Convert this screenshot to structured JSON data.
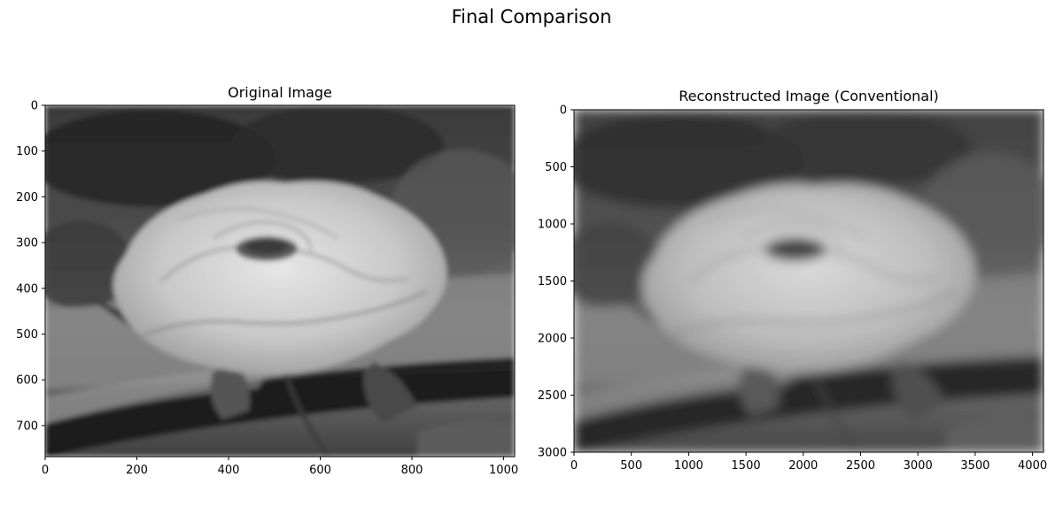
{
  "figure": {
    "title": "Final Comparison"
  },
  "chart_data": [
    {
      "type": "heatmap",
      "title": "Original Image",
      "colormap": "gray",
      "xlim": [
        0,
        1024
      ],
      "ylim": [
        768,
        0
      ],
      "xticks": [
        0,
        200,
        400,
        600,
        800,
        1000
      ],
      "yticks": [
        0,
        100,
        200,
        300,
        400,
        500,
        600,
        700
      ],
      "xticklabels": [
        "0",
        "200",
        "400",
        "600",
        "800",
        "1000"
      ],
      "yticklabels": [
        "0",
        "100",
        "200",
        "300",
        "400",
        "500",
        "600",
        "700"
      ],
      "content": "grayscale photo of a rose"
    },
    {
      "type": "heatmap",
      "title": "Reconstructed Image (Conventional)",
      "colormap": "gray",
      "xlim": [
        0,
        4096
      ],
      "ylim": [
        3000,
        0
      ],
      "xticks": [
        0,
        500,
        1000,
        1500,
        2000,
        2500,
        3000,
        3500,
        4000
      ],
      "yticks": [
        0,
        500,
        1000,
        1500,
        2000,
        2500,
        3000
      ],
      "xticklabels": [
        "0",
        "500",
        "1000",
        "1500",
        "2000",
        "2500",
        "3000",
        "3500",
        "4000"
      ],
      "yticklabels": [
        "0",
        "500",
        "1000",
        "1500",
        "2000",
        "2500",
        "3000"
      ],
      "content": "blurred grayscale reconstruction of the rose photo"
    }
  ]
}
